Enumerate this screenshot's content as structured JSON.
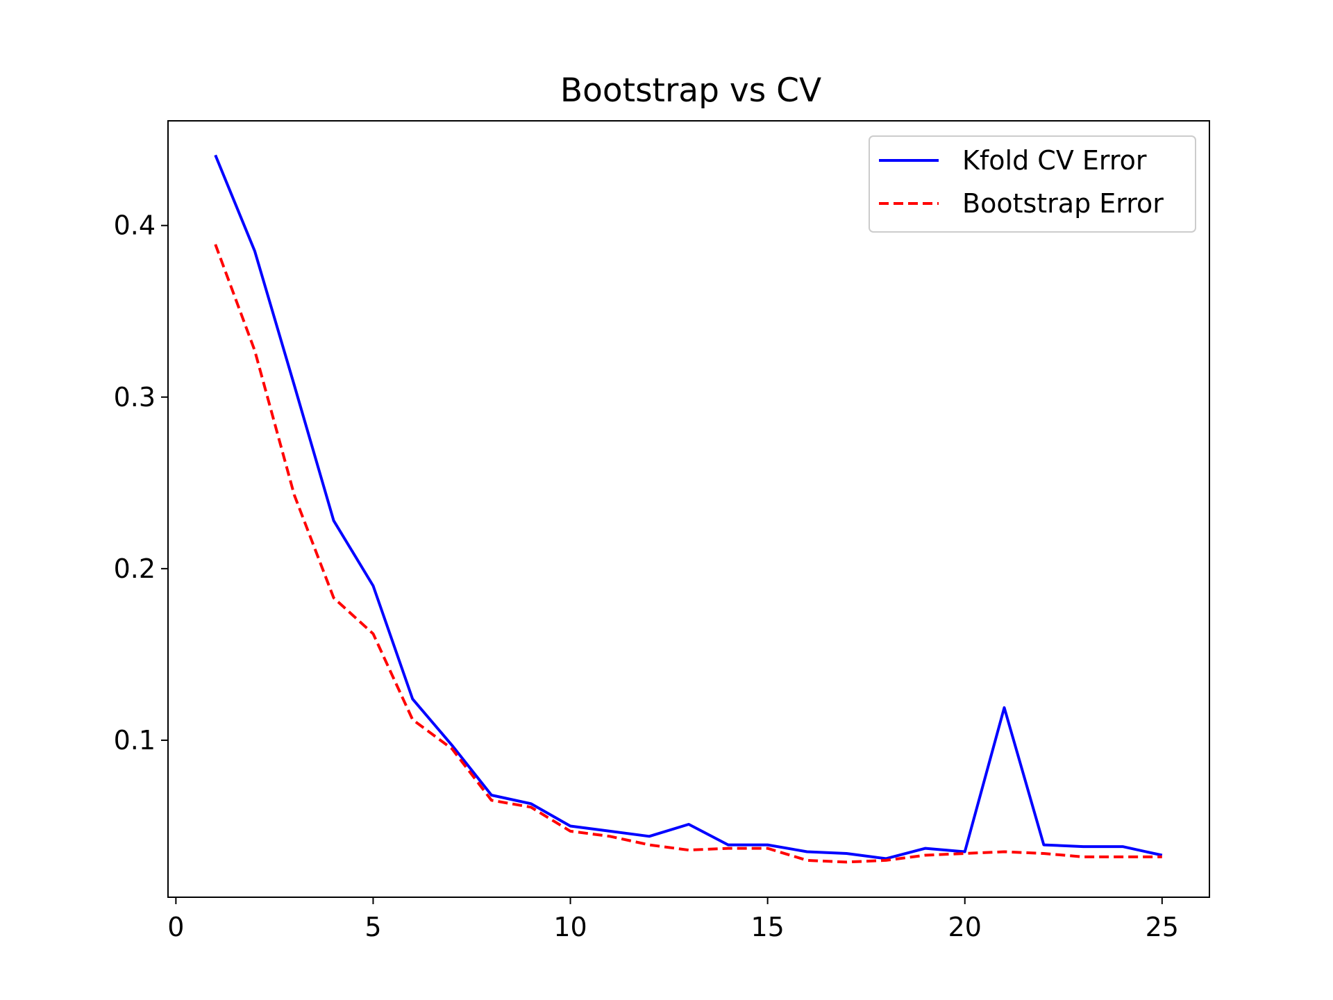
{
  "chart_data": {
    "type": "line",
    "title": "Bootstrap vs CV",
    "xlabel": "",
    "ylabel": "",
    "xlim": [
      -0.2,
      26.2
    ],
    "ylim": [
      0.0085,
      0.461
    ],
    "xticks": [
      0,
      5,
      10,
      15,
      20,
      25
    ],
    "xtick_labels": [
      "0",
      "5",
      "10",
      "15",
      "20",
      "25"
    ],
    "yticks": [
      0.1,
      0.2,
      0.3,
      0.4
    ],
    "ytick_labels": [
      "0.1",
      "0.2",
      "0.3",
      "0.4"
    ],
    "grid": false,
    "legend_position": "top-right",
    "x": [
      1,
      2,
      3,
      4,
      5,
      6,
      7,
      8,
      9,
      10,
      11,
      12,
      13,
      14,
      15,
      16,
      17,
      18,
      19,
      20,
      21,
      22,
      23,
      24,
      25
    ],
    "series": [
      {
        "name": "Kfold CV Error",
        "color": "#0000ff",
        "style": "solid",
        "values": [
          0.441,
          0.385,
          0.307,
          0.228,
          0.19,
          0.124,
          0.097,
          0.068,
          0.063,
          0.05,
          0.047,
          0.044,
          0.051,
          0.039,
          0.039,
          0.035,
          0.034,
          0.031,
          0.037,
          0.035,
          0.119,
          0.039,
          0.038,
          0.038,
          0.033
        ]
      },
      {
        "name": "Bootstrap Error",
        "color": "#ff0000",
        "style": "dashed",
        "values": [
          0.389,
          0.327,
          0.243,
          0.183,
          0.162,
          0.112,
          0.095,
          0.065,
          0.061,
          0.047,
          0.044,
          0.039,
          0.036,
          0.037,
          0.037,
          0.03,
          0.029,
          0.03,
          0.033,
          0.034,
          0.035,
          0.034,
          0.032,
          0.032,
          0.032
        ]
      }
    ]
  }
}
